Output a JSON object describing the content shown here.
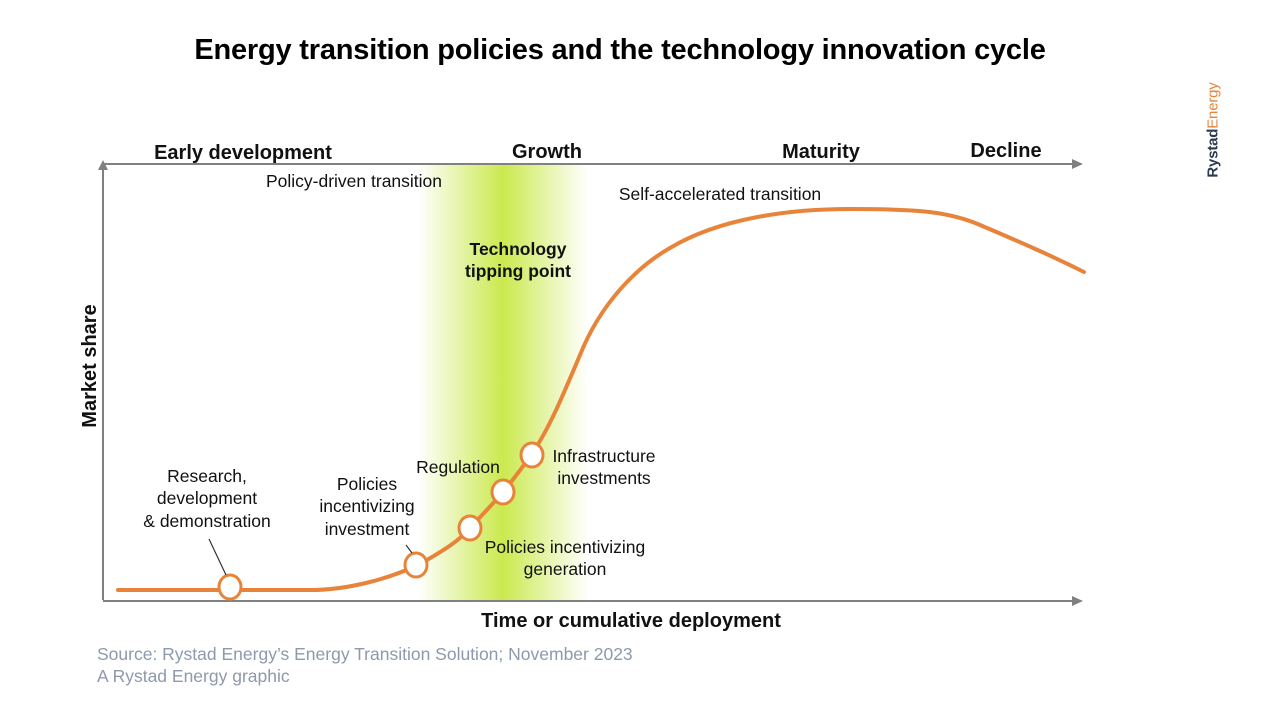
{
  "title": "Energy transition policies and the technology innovation cycle",
  "brand": {
    "part1": "Rystad",
    "part2": "Energy"
  },
  "phases": [
    "Early development",
    "Growth",
    "Maturity",
    "Decline"
  ],
  "axes": {
    "x": "Time or cumulative deployment",
    "y": "Market share"
  },
  "transitions": {
    "policy": "Policy-driven transition",
    "self": "Self-accelerated transition"
  },
  "tipping_point": {
    "line1": "Technology",
    "line2": "tipping point"
  },
  "milestones": {
    "research": [
      "Research,",
      "development",
      "& demonstration"
    ],
    "policies_investment": [
      "Policies",
      "incentivizing",
      "investment"
    ],
    "regulation": [
      "Regulation"
    ],
    "policies_generation": [
      "Policies incentivizing",
      "generation"
    ],
    "infrastructure": [
      "Infrastructure",
      "investments"
    ]
  },
  "source": {
    "line1": "Source: Rystad Energy’s Energy Transition Solution; November 2023",
    "line2": "A Rystad Energy graphic"
  },
  "colors": {
    "curve": "#e8843a",
    "axis": "#808080",
    "highlight": "#c8e845",
    "brand_dark": "#2a3a4f"
  }
}
